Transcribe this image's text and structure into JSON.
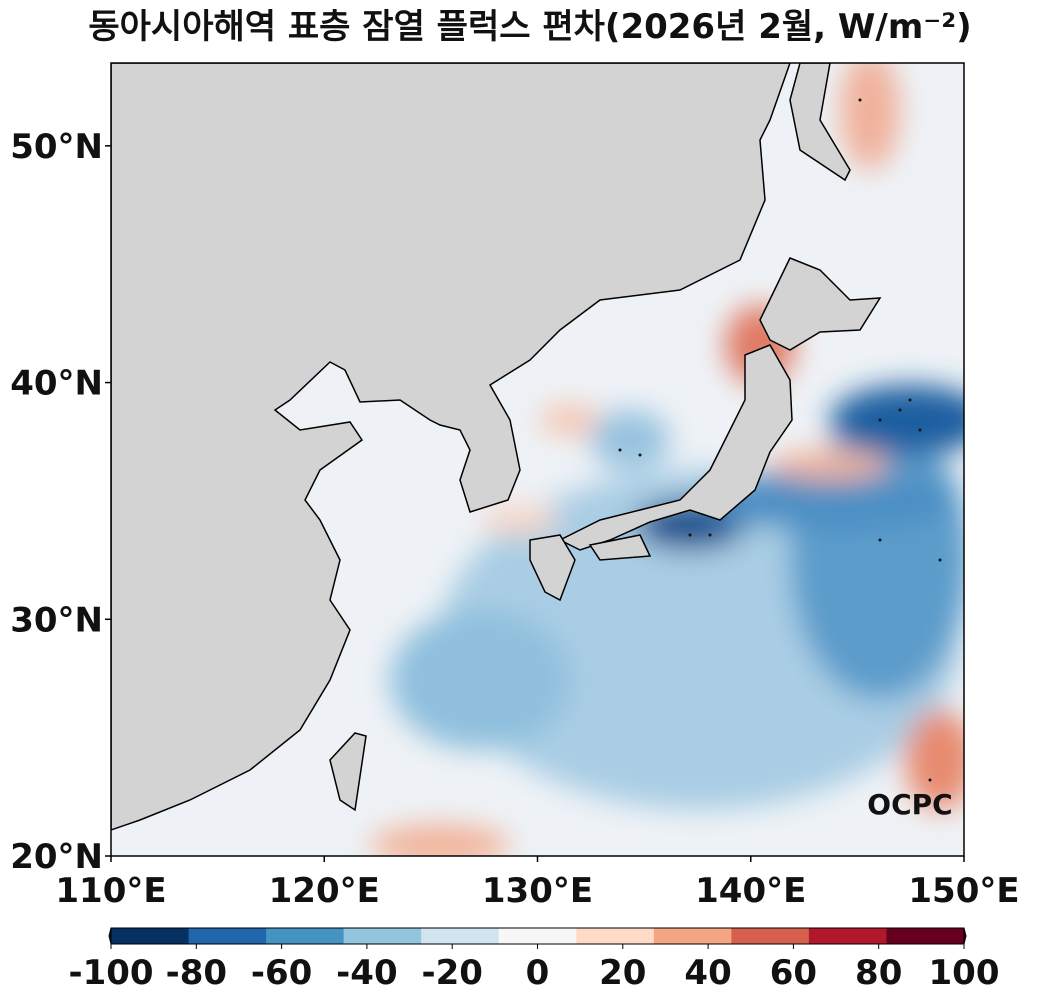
{
  "map": {
    "title": "동아시아해역 표층 잠열 플럭스 편차(2026년 2월, W/m⁻²)",
    "xlim": [
      110,
      150
    ],
    "ylim": [
      20,
      53.5
    ],
    "xticks": [
      {
        "value": 110,
        "label": "110°E"
      },
      {
        "value": 120,
        "label": "120°E"
      },
      {
        "value": 130,
        "label": "130°E"
      },
      {
        "value": 140,
        "label": "140°E"
      },
      {
        "value": 150,
        "label": "150°E"
      }
    ],
    "yticks": [
      {
        "value": 20,
        "label": "20°N"
      },
      {
        "value": 30,
        "label": "30°N"
      },
      {
        "value": 40,
        "label": "40°N"
      },
      {
        "value": 50,
        "label": "50°N"
      }
    ],
    "colorbar": {
      "lim": [
        -100,
        100
      ],
      "ticks": [
        -100,
        -80,
        -60,
        -40,
        -20,
        0,
        20,
        40,
        60,
        80,
        100
      ],
      "colors": [
        "#053061",
        "#2166ac",
        "#4393c3",
        "#92c5de",
        "#d1e5f0",
        "#f7f7f7",
        "#fddbc7",
        "#f4a582",
        "#d6604d",
        "#b2182b",
        "#67001f"
      ]
    },
    "logo": "OCPC"
  }
}
